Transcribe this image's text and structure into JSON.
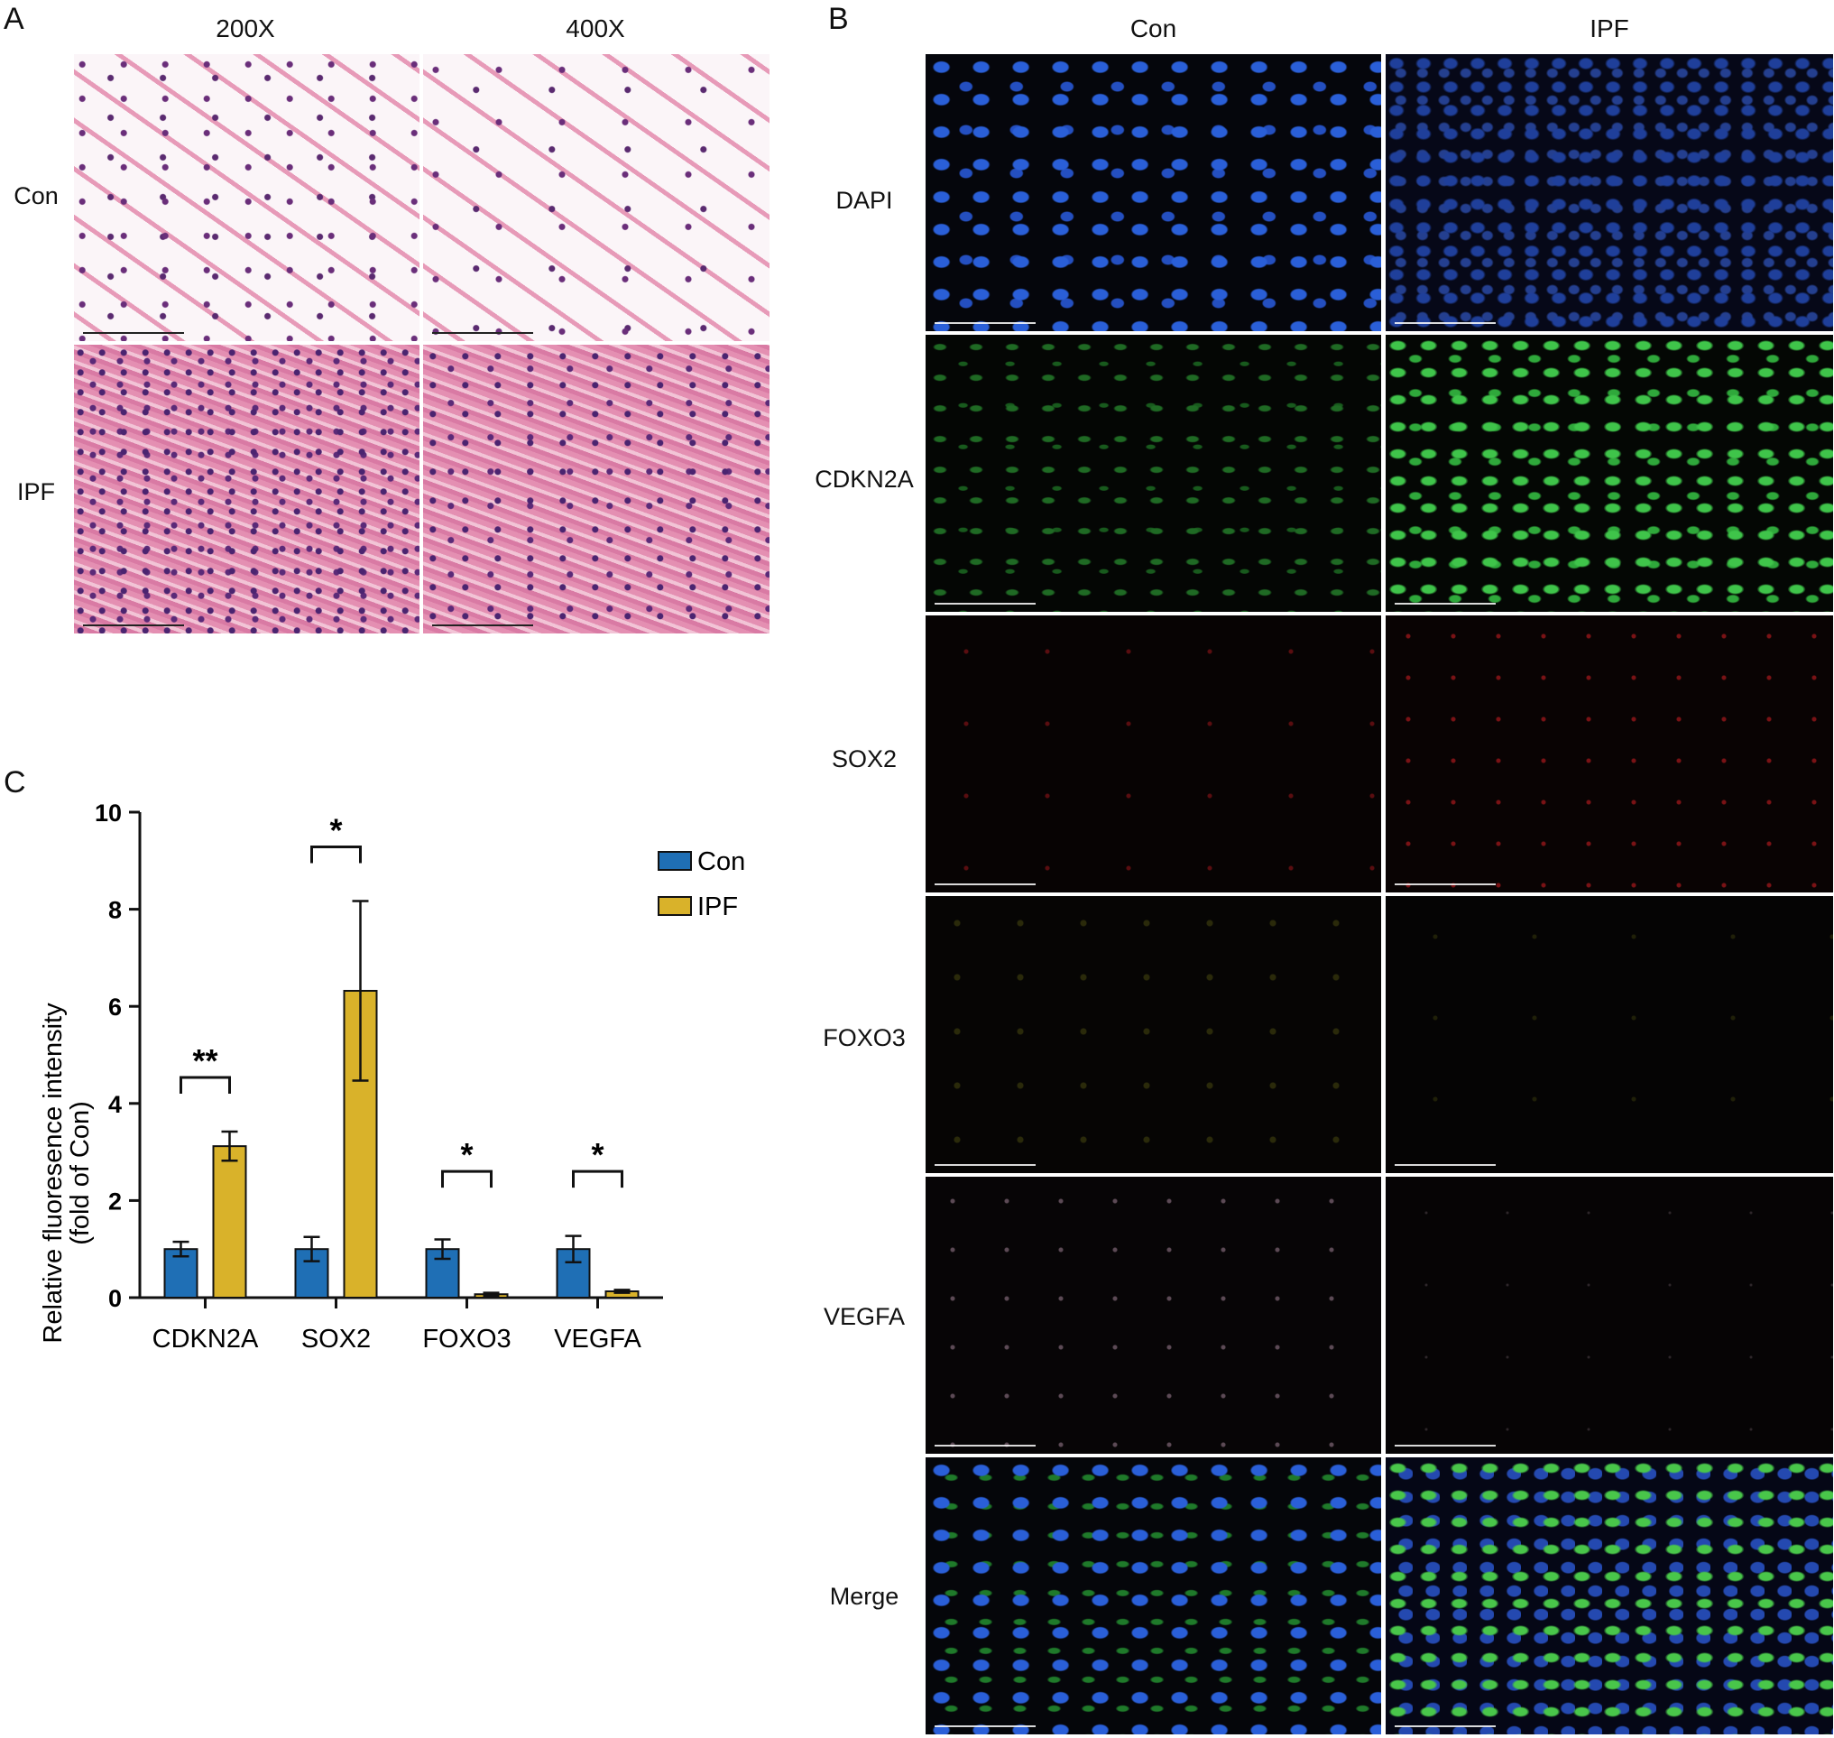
{
  "panels": {
    "a": {
      "letter": "A",
      "columns": [
        "200X",
        "400X"
      ],
      "rows": [
        "Con",
        "IPF"
      ]
    },
    "b": {
      "letter": "B",
      "columns": [
        "Con",
        "IPF"
      ],
      "rows": [
        "DAPI",
        "CDKN2A",
        "SOX2",
        "FOXO3",
        "VEGFA",
        "Merge"
      ]
    },
    "c": {
      "letter": "C"
    }
  },
  "chart_data": {
    "type": "bar",
    "categories": [
      "CDKN2A",
      "SOX2",
      "FOXO3",
      "VEGFA"
    ],
    "series": [
      {
        "name": "Con",
        "color": "#1f6fb5",
        "values": [
          1.0,
          1.0,
          1.0,
          1.0
        ],
        "errors": [
          0.15,
          0.25,
          0.2,
          0.27
        ]
      },
      {
        "name": "IPF",
        "color": "#d9b22a",
        "values": [
          3.12,
          6.32,
          0.07,
          0.13
        ],
        "errors": [
          0.3,
          1.85,
          0.03,
          0.03
        ]
      }
    ],
    "significance": [
      "**",
      "*",
      "*",
      "*"
    ],
    "ylabel": "Relative fluoresence intensity",
    "ylabel2": "(fold of Con)",
    "ylim": [
      0,
      10
    ],
    "yticks": [
      0,
      2,
      4,
      6,
      8,
      10
    ],
    "legend": "top-right",
    "grid": false
  }
}
